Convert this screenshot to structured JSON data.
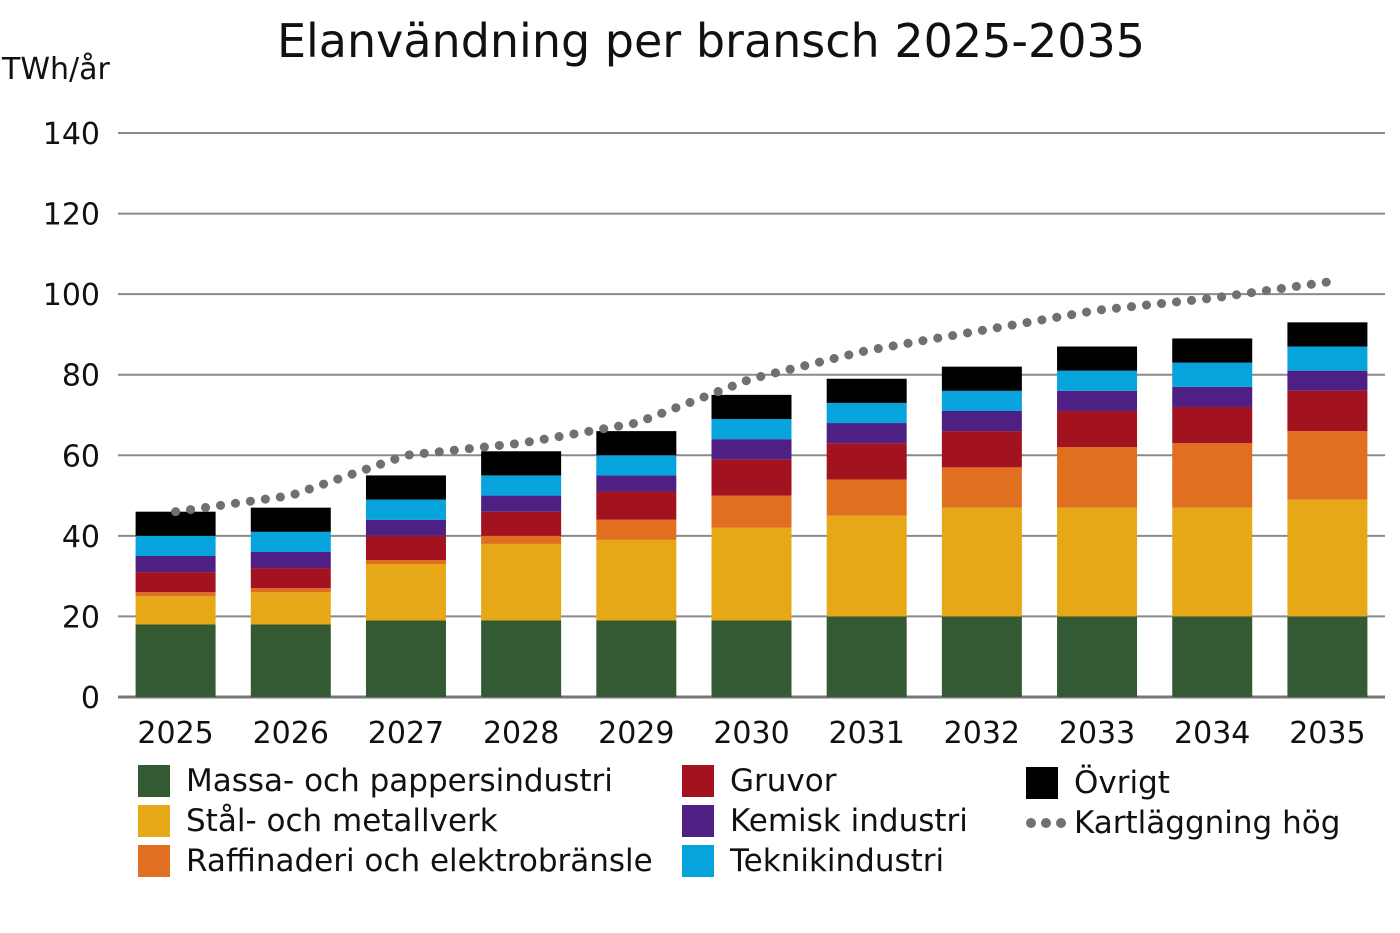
{
  "chart_data": {
    "type": "bar",
    "stacked": true,
    "title": "Elanvändning per bransch 2025-2035",
    "ylabel": "TWh/år",
    "xlabel": "",
    "ylim": [
      0,
      140
    ],
    "yticks": [
      0,
      20,
      40,
      60,
      80,
      100,
      120,
      140
    ],
    "grid": true,
    "legend_position": "bottom",
    "categories": [
      "2025",
      "2026",
      "2027",
      "2028",
      "2029",
      "2030",
      "2031",
      "2032",
      "2033",
      "2034",
      "2035"
    ],
    "series": [
      {
        "name": "Massa- och pappersindustri",
        "color": "#335a32",
        "values": [
          18,
          18,
          19,
          19,
          19,
          19,
          20,
          20,
          20,
          20,
          20
        ]
      },
      {
        "name": "Stål- och metallverk",
        "color": "#e6a817",
        "values": [
          7,
          8,
          14,
          19,
          20,
          23,
          25,
          27,
          27,
          27,
          29
        ]
      },
      {
        "name": "Raffinaderi och elektrobränsle",
        "color": "#e07020",
        "values": [
          1,
          1,
          1,
          2,
          5,
          8,
          9,
          10,
          15,
          16,
          17
        ]
      },
      {
        "name": "Gruvor",
        "color": "#a3121f",
        "values": [
          5,
          5,
          6,
          6,
          7,
          9,
          9,
          9,
          9,
          9,
          10
        ]
      },
      {
        "name": "Kemisk industri",
        "color": "#4f2083",
        "values": [
          4,
          4,
          4,
          4,
          4,
          5,
          5,
          5,
          5,
          5,
          5
        ]
      },
      {
        "name": "Teknikindustri",
        "color": "#06a3dc",
        "values": [
          5,
          5,
          5,
          5,
          5,
          5,
          5,
          5,
          5,
          6,
          6
        ]
      },
      {
        "name": "Övrigt",
        "color": "#000000",
        "values": [
          6,
          6,
          6,
          6,
          6,
          6,
          6,
          6,
          6,
          6,
          6
        ]
      }
    ],
    "line": {
      "name": "Kartläggning hög",
      "color": "#707070",
      "style": "dotted",
      "values": [
        46,
        50,
        60,
        63,
        68,
        79,
        86,
        91,
        96,
        99,
        103
      ]
    }
  }
}
